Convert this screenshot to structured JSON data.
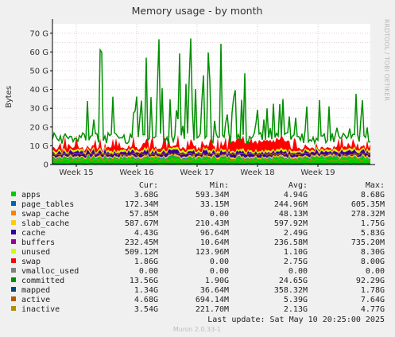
{
  "chart_data": {
    "type": "area",
    "title": "Memory usage - by month",
    "ylabel": "Bytes",
    "side_label": "RRDTOOL / TOBI OETIKER",
    "ylim": [
      0,
      75
    ],
    "y_ticks": [
      {
        "v": 0,
        "label": "0"
      },
      {
        "v": 10,
        "label": "10 G"
      },
      {
        "v": 20,
        "label": "20 G"
      },
      {
        "v": 30,
        "label": "30 G"
      },
      {
        "v": 40,
        "label": "40 G"
      },
      {
        "v": 50,
        "label": "50 G"
      },
      {
        "v": 60,
        "label": "60 G"
      },
      {
        "v": 70,
        "label": "70 G"
      }
    ],
    "x_ticks": [
      {
        "pos": 0.075,
        "label": "Week 15"
      },
      {
        "pos": 0.265,
        "label": "Week 16"
      },
      {
        "pos": 0.455,
        "label": "Week 17"
      },
      {
        "pos": 0.645,
        "label": "Week 18"
      },
      {
        "pos": 0.835,
        "label": "Week 19"
      }
    ],
    "legend_headers": [
      "Cur:",
      "Min:",
      "Avg:",
      "Max:"
    ],
    "series": [
      {
        "name": "apps",
        "color": "#00cc00",
        "cur": "3.68G",
        "min": "593.34M",
        "avg": "4.94G",
        "max": "8.68G"
      },
      {
        "name": "page_tables",
        "color": "#0066b3",
        "cur": "172.34M",
        "min": "33.15M",
        "avg": "244.96M",
        "max": "605.35M"
      },
      {
        "name": "swap_cache",
        "color": "#ff8000",
        "cur": "57.85M",
        "min": "0.00",
        "avg": "48.13M",
        "max": "278.32M"
      },
      {
        "name": "slab_cache",
        "color": "#ffcc00",
        "cur": "587.67M",
        "min": "210.43M",
        "avg": "597.92M",
        "max": "1.75G"
      },
      {
        "name": "cache",
        "color": "#330099",
        "cur": "4.43G",
        "min": "96.64M",
        "avg": "2.49G",
        "max": "5.83G"
      },
      {
        "name": "buffers",
        "color": "#990099",
        "cur": "232.45M",
        "min": "10.64M",
        "avg": "236.58M",
        "max": "735.20M"
      },
      {
        "name": "unused",
        "color": "#ccff00",
        "cur": "509.12M",
        "min": "123.96M",
        "avg": "1.10G",
        "max": "8.30G"
      },
      {
        "name": "swap",
        "color": "#ff0000",
        "cur": "1.86G",
        "min": "0.00",
        "avg": "2.75G",
        "max": "8.00G"
      },
      {
        "name": "vmalloc_used",
        "color": "#808080",
        "cur": "0.00",
        "min": "0.00",
        "avg": "0.00",
        "max": "0.00"
      },
      {
        "name": "committed",
        "color": "#008f00",
        "cur": "13.56G",
        "min": "1.90G",
        "avg": "24.65G",
        "max": "92.29G"
      },
      {
        "name": "mapped",
        "color": "#00487d",
        "cur": "1.34G",
        "min": "36.64M",
        "avg": "358.32M",
        "max": "1.78G"
      },
      {
        "name": "active",
        "color": "#b35a00",
        "cur": "4.68G",
        "min": "694.14M",
        "avg": "5.39G",
        "max": "7.64G"
      },
      {
        "name": "inactive",
        "color": "#b38f00",
        "cur": "3.54G",
        "min": "221.70M",
        "avg": "2.13G",
        "max": "4.77G"
      }
    ],
    "last_update": "Last update:  Sat May 10 20:25:00 2025",
    "footer": "Munin 2.0.33-1"
  }
}
